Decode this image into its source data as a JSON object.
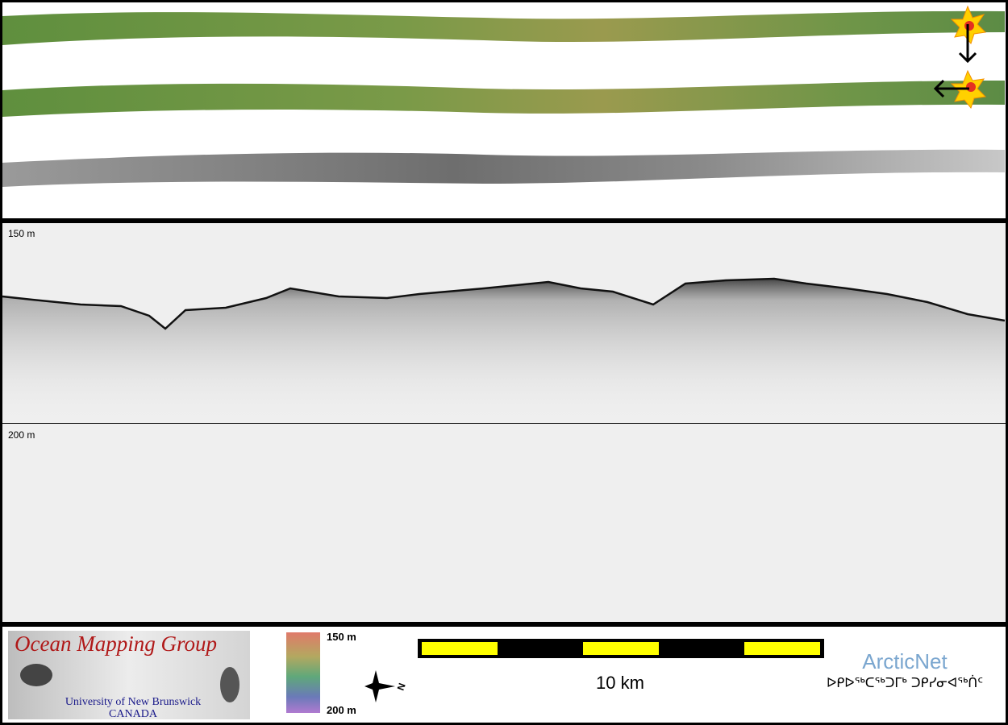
{
  "profile": {
    "top_depth_label": "150 m",
    "mid_depth_label": "200 m"
  },
  "footer": {
    "logo": {
      "title": "Ocean Mapping Group",
      "line1": "University of New Brunswick",
      "line2": "CANADA"
    },
    "colorbar": {
      "max_label": "150 m",
      "min_label": "200 m"
    },
    "compass": {
      "label": "N"
    },
    "scale_bar": {
      "label": "10 km"
    },
    "partner": {
      "name": "ArcticNet",
      "syllabics": "ᐅᑭᐅᖅᑕᖅᑐᒥᒃ ᑐᑭᓯᓂᐊᖅᑏᑦ"
    }
  }
}
